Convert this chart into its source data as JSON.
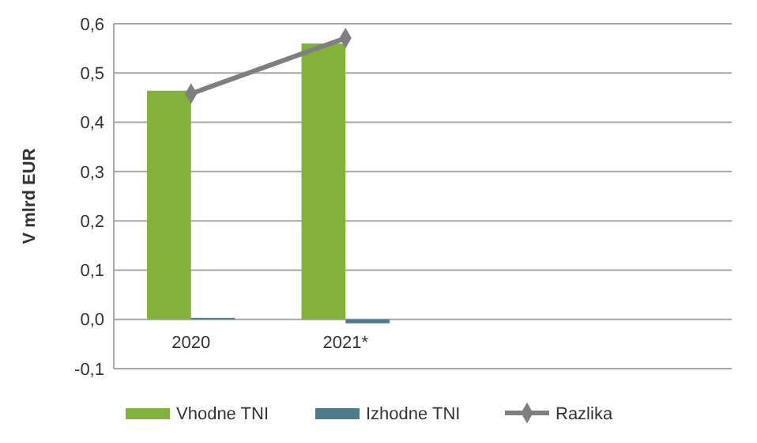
{
  "chart_data": {
    "type": "bar",
    "ylabel": "V mlrd EUR",
    "categories": [
      "2020",
      "2021*",
      null,
      null
    ],
    "series": [
      {
        "name": "Vhodne TNI",
        "color": "#82b23c",
        "values": [
          0.464,
          0.56,
          null,
          null
        ]
      },
      {
        "name": "Izhodne TNI",
        "color": "#4f7a8c",
        "values": [
          0.003,
          -0.008,
          null,
          null
        ]
      },
      {
        "name": "Razlika",
        "type": "line",
        "color": "#7f7f7f",
        "marker": "diamond",
        "values": [
          0.458,
          0.571,
          null,
          null
        ]
      }
    ],
    "ylim": [
      -0.1,
      0.6
    ],
    "yticks": [
      {
        "value": -0.1,
        "label": "-0,1"
      },
      {
        "value": 0,
        "label": "0,0"
      },
      {
        "value": 0.1,
        "label": "0,1"
      },
      {
        "value": 0.2,
        "label": "0,2"
      },
      {
        "value": 0.3,
        "label": "0,3"
      },
      {
        "value": 0.4,
        "label": "0,4"
      },
      {
        "value": 0.5,
        "label": "0,5"
      },
      {
        "value": 0.6,
        "label": "0,6"
      }
    ],
    "grid": "y",
    "legend": "bottom"
  }
}
